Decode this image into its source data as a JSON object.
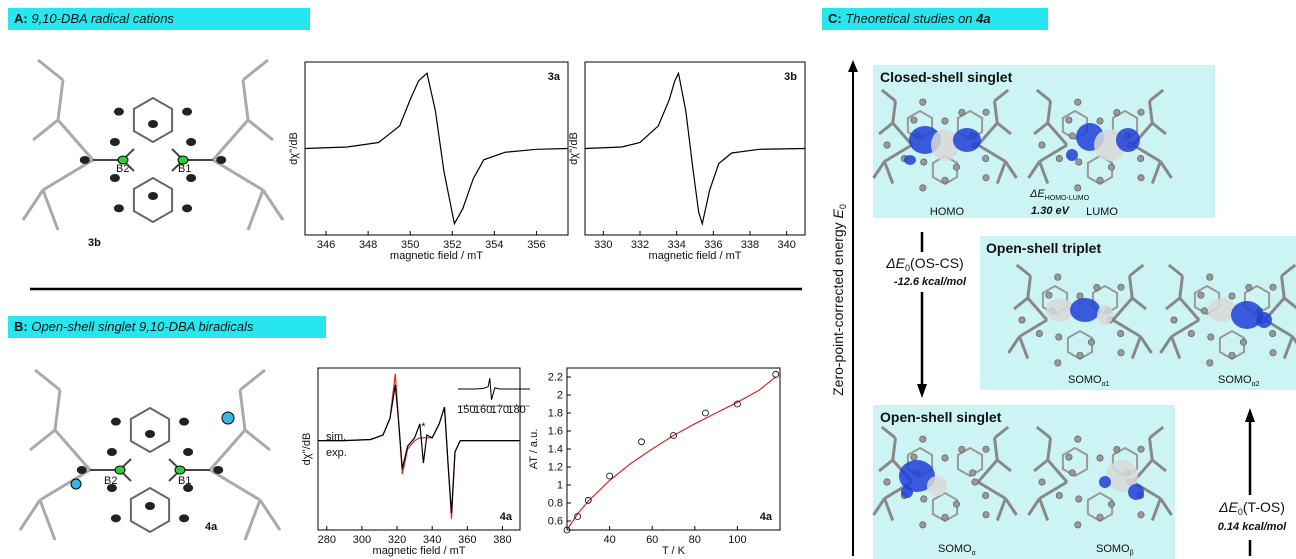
{
  "panel_a": {
    "letter": "A:",
    "title": "9,10-DBA radical cations",
    "compound": "3b",
    "atoms": [
      "B2",
      "B1"
    ]
  },
  "panel_b": {
    "letter": "B:",
    "title": "Open-shell singlet 9,10-DBA biradicals",
    "compound": "4a",
    "atoms": [
      "B2",
      "B1"
    ]
  },
  "panel_c": {
    "letter": "C:",
    "title": "Theoretical studies on",
    "compound": "4a",
    "axis_label": {
      "main": "Zero-point-corrected energy",
      "symbol": "E",
      "sub": "0"
    },
    "states": [
      {
        "name": "Closed-shell singlet",
        "orbitals": [
          {
            "main": "HOMO"
          },
          {
            "main": "LUMO"
          }
        ],
        "gap": {
          "symbol": "ΔE",
          "sub": "HOMO-LUMO",
          "value": "1.30 eV"
        }
      },
      {
        "name": "Open-shell triplet",
        "orbitals": [
          {
            "main": "SOMO",
            "sub": "α1"
          },
          {
            "main": "SOMO",
            "sub": "α2"
          }
        ]
      },
      {
        "name": "Open-shell singlet",
        "orbitals": [
          {
            "main": "SOMO",
            "sub": "α"
          },
          {
            "main": "SOMO",
            "sub": "β"
          }
        ]
      }
    ],
    "transitions": [
      {
        "symbol": "ΔE",
        "sub": "0",
        "label": "(OS-CS)",
        "value": "-12.6 kcal/mol"
      },
      {
        "symbol": "ΔE",
        "sub": "0",
        "label": "(T-OS)",
        "value": "0.14 kcal/mol"
      }
    ]
  },
  "chart_data": [
    {
      "type": "line",
      "annotation": "3a",
      "ylabel": "dχ''/dB",
      "xlabel": "magnetic field / mT",
      "xlim": [
        345,
        357.5
      ],
      "xticks": [
        346,
        348,
        350,
        352,
        354,
        356
      ],
      "ylim": [
        -1.15,
        1.15
      ],
      "x": [
        345,
        347,
        348.5,
        349.5,
        350,
        350.4,
        350.8,
        351.2,
        351.6,
        352.1,
        352.5,
        353,
        353.5,
        354.5,
        356,
        357.5
      ],
      "series": [
        {
          "color": "#000000",
          "values": [
            0,
            0.02,
            0.08,
            0.3,
            0.65,
            0.9,
            1,
            0.5,
            -0.3,
            -1,
            -0.8,
            -0.4,
            -0.15,
            -0.05,
            -0.01,
            0
          ]
        }
      ]
    },
    {
      "type": "line",
      "annotation": "3b",
      "ylabel": "dχ''/dB",
      "xlabel": "magnetic field / mT",
      "xlim": [
        329,
        341
      ],
      "xticks": [
        330,
        332,
        334,
        336,
        338,
        340
      ],
      "ylim": [
        -1.15,
        1.15
      ],
      "x": [
        329,
        331,
        332,
        333,
        333.6,
        333.9,
        334.1,
        334.5,
        334.9,
        335.2,
        335.4,
        335.8,
        336.3,
        337,
        338.5,
        341
      ],
      "series": [
        {
          "color": "#000000",
          "values": [
            0,
            0.02,
            0.08,
            0.3,
            0.65,
            0.9,
            1,
            0.5,
            -0.3,
            -0.85,
            -1,
            -0.55,
            -0.2,
            -0.06,
            -0.01,
            0
          ]
        }
      ]
    },
    {
      "type": "line",
      "annotation": "4a",
      "ylabel": "dχ''/dB",
      "xlabel": "magnetic field / mT",
      "star_label": "*",
      "xlim": [
        275,
        390
      ],
      "xticks": [
        280,
        300,
        320,
        340,
        360,
        380
      ],
      "ylim": [
        -1.6,
        1.3
      ],
      "x": [
        275,
        290,
        305,
        312,
        316,
        319,
        321,
        323,
        326,
        330,
        333,
        335,
        337,
        340,
        344,
        347,
        349,
        351,
        353,
        356,
        360,
        370,
        390
      ],
      "series": [
        {
          "name": "sim.",
          "color": "#d42a24",
          "values": [
            0,
            0,
            0.02,
            0.1,
            0.4,
            1.2,
            0.3,
            -0.6,
            -0.15,
            0,
            0.05,
            0.05,
            0.05,
            0.05,
            0.3,
            0.6,
            -0.4,
            -1.4,
            -0.2,
            0,
            0,
            0,
            0
          ]
        },
        {
          "name": "exp.",
          "color": "#000000",
          "values": [
            0,
            0,
            0.02,
            0.1,
            0.4,
            1.0,
            0.3,
            -0.5,
            -0.1,
            0.05,
            0.3,
            -0.4,
            0.1,
            0.05,
            0.3,
            0.6,
            -0.4,
            -1.3,
            -0.2,
            0,
            0,
            0,
            0
          ]
        }
      ],
      "inset": {
        "xlim": [
          145,
          188
        ],
        "xticks": [
          150,
          160,
          170,
          180
        ],
        "ylim": [
          -1.2,
          1.2
        ],
        "x": [
          145,
          155,
          160,
          163,
          164,
          165,
          167,
          170,
          180,
          188
        ],
        "values": [
          0,
          0,
          0.05,
          0.2,
          1,
          -1,
          0.1,
          0,
          0,
          0
        ]
      }
    },
    {
      "type": "scatter",
      "annotation": "4a",
      "ylabel": "AT / a.u.",
      "xlabel": "T / K",
      "xlim": [
        20,
        120
      ],
      "xticks": [
        40,
        60,
        80,
        100
      ],
      "ylim": [
        0.5,
        2.3
      ],
      "yticks": [
        0.6,
        0.8,
        1,
        1.2,
        1.4,
        1.6,
        1.8,
        2,
        2.2
      ],
      "x": [
        20,
        25,
        30,
        40,
        55,
        70,
        85,
        100,
        118
      ],
      "values": [
        0.5,
        0.65,
        0.83,
        1.1,
        1.48,
        1.55,
        1.8,
        1.9,
        2.23
      ],
      "fit": {
        "color": "#d42a24",
        "x": [
          20,
          25,
          30,
          40,
          50,
          60,
          70,
          80,
          90,
          100,
          110,
          118
        ],
        "values": [
          0.5,
          0.68,
          0.82,
          1.05,
          1.24,
          1.4,
          1.55,
          1.68,
          1.8,
          1.92,
          2.05,
          2.2
        ]
      }
    }
  ]
}
